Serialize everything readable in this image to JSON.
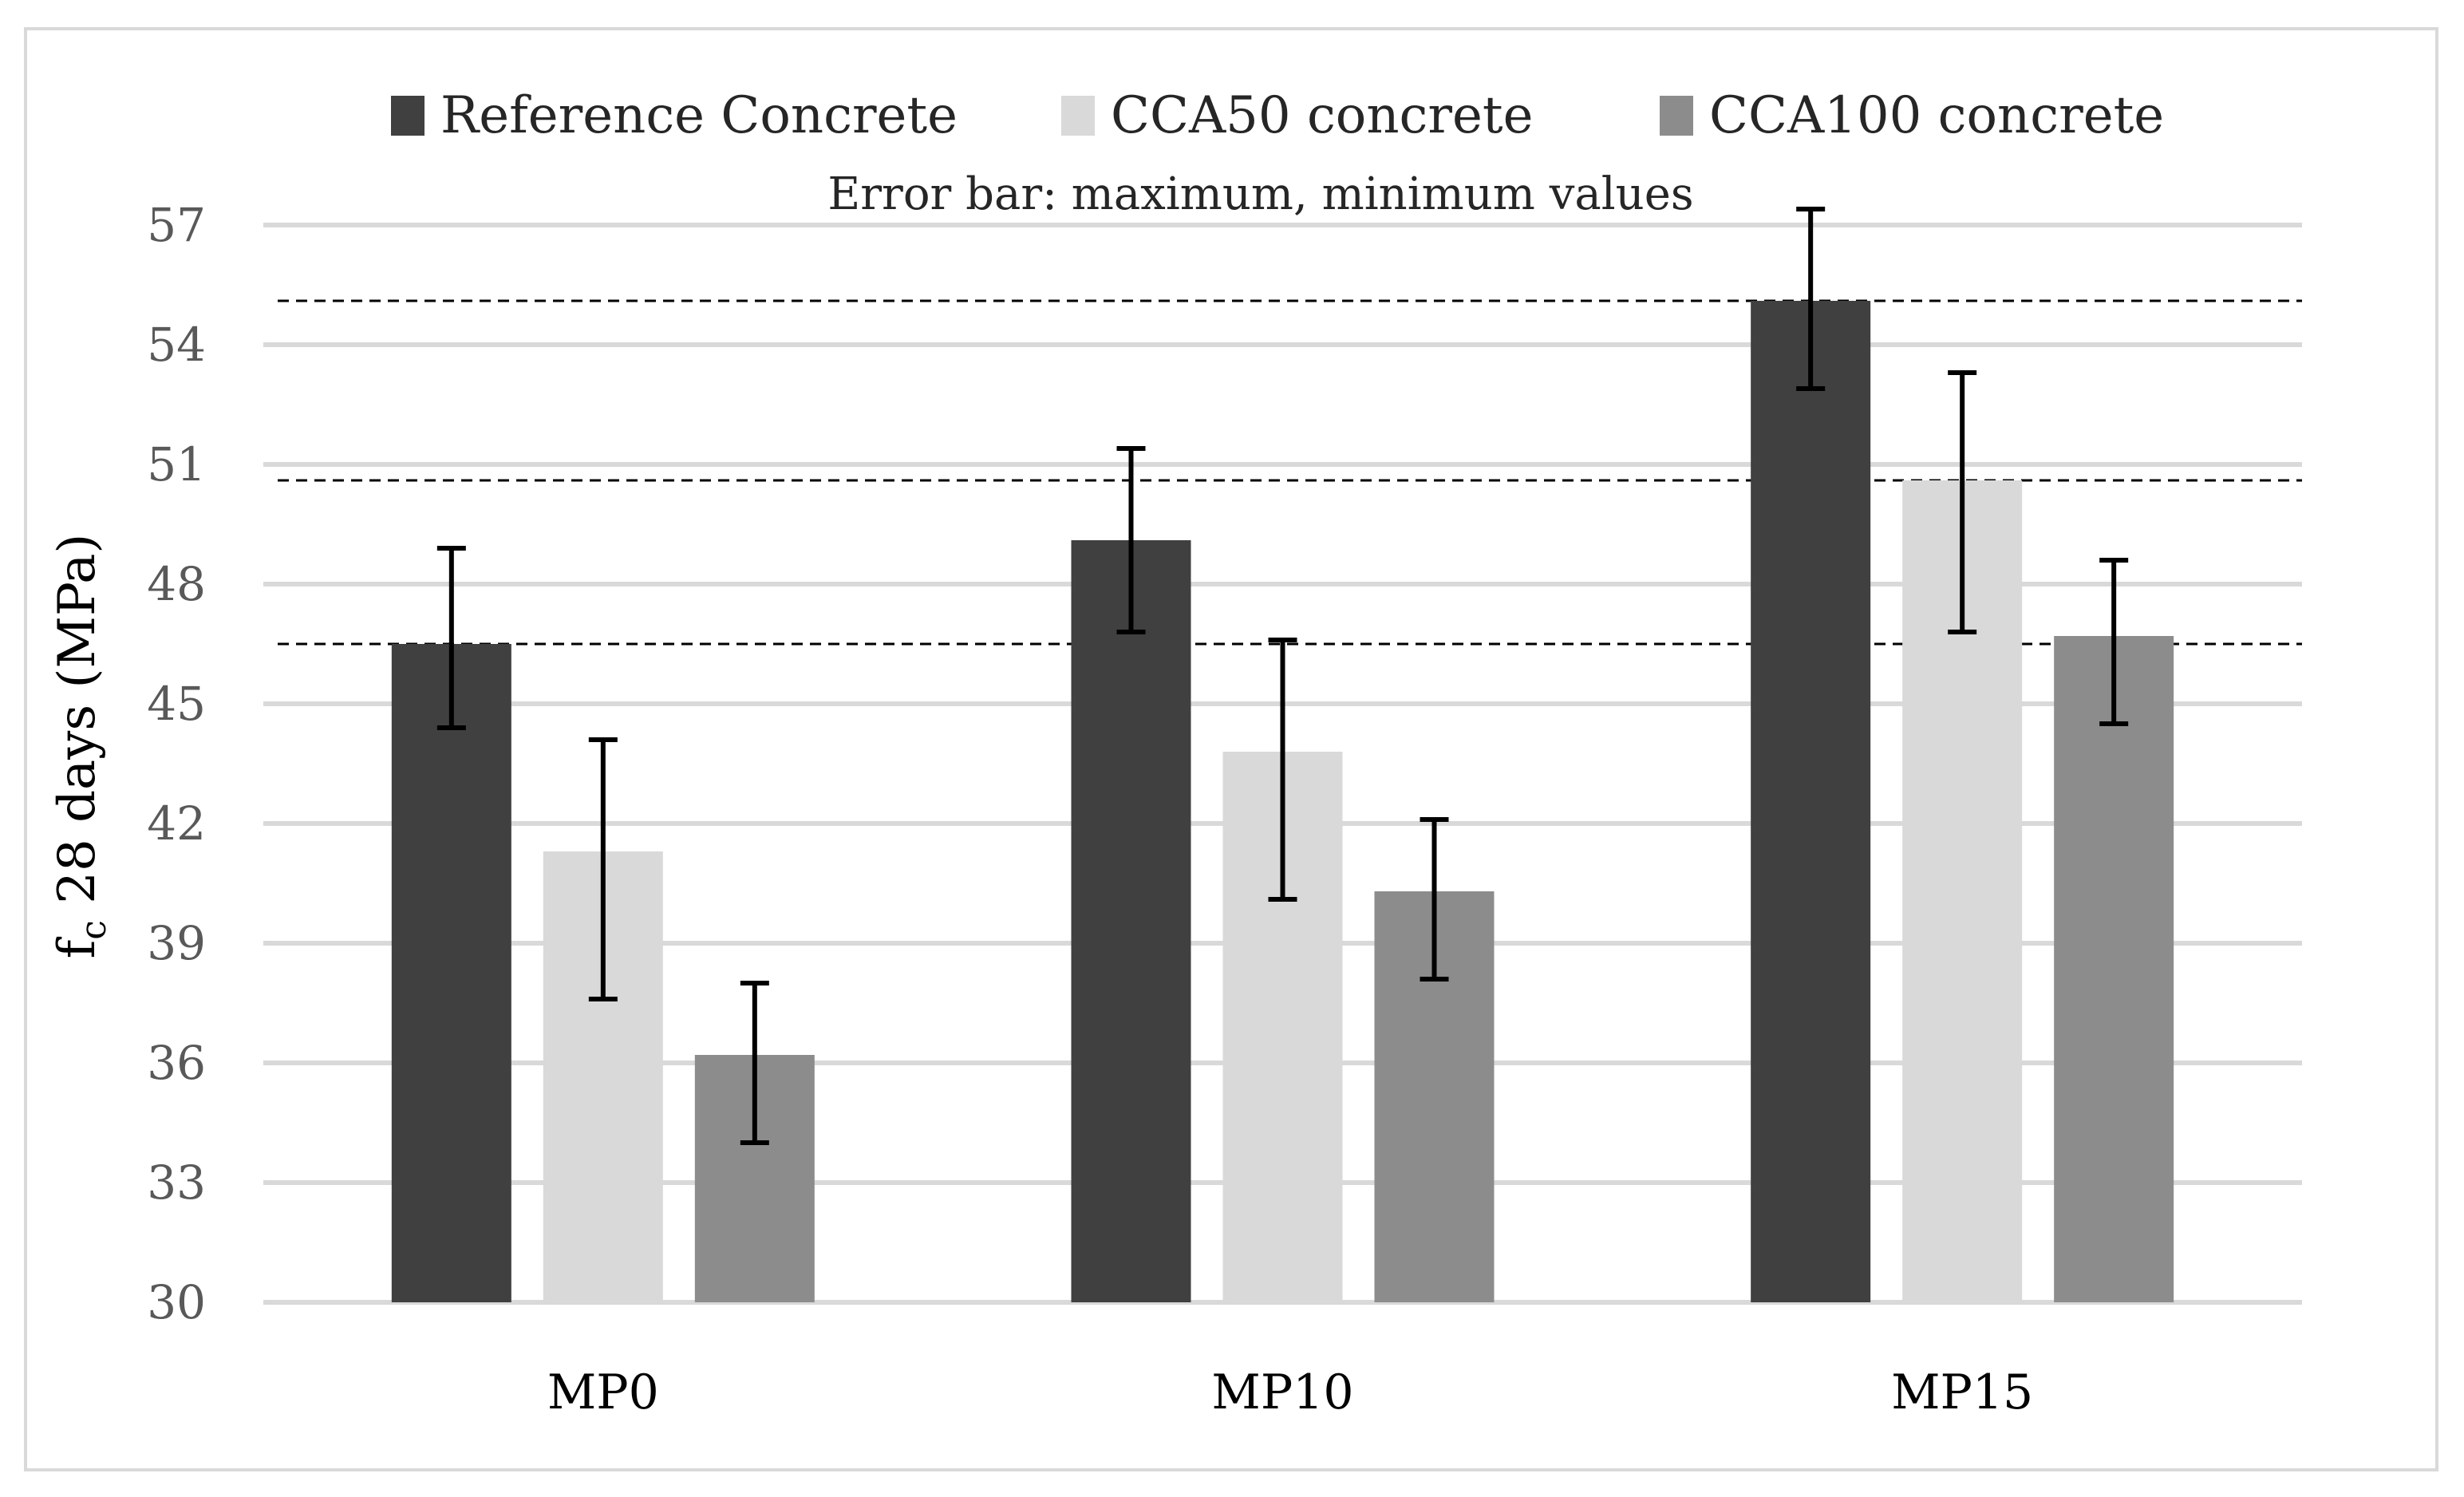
{
  "chart_data": {
    "type": "bar",
    "title": "",
    "xlabel": "",
    "ylabel": {
      "prefix": "f",
      "subscript": "c",
      "suffix": " 28 days (MPa)"
    },
    "note": "Error bar: maximum, minimum values",
    "categories": [
      "MP0",
      "MP10",
      "MP15"
    ],
    "ylim": [
      30,
      57
    ],
    "yticks": [
      30,
      33,
      36,
      39,
      42,
      45,
      48,
      51,
      54,
      57
    ],
    "grid": true,
    "legend_position": "top",
    "series": [
      {
        "name": "Reference Concrete",
        "color": "#404040",
        "values": [
          46.5,
          49.1,
          55.1
        ],
        "max": [
          48.9,
          51.4,
          57.4
        ],
        "min": [
          44.4,
          46.8,
          52.9
        ]
      },
      {
        "name": "CCA50 concrete",
        "color": "#d9d9d9",
        "values": [
          41.3,
          43.8,
          50.6
        ],
        "max": [
          44.1,
          46.6,
          53.3
        ],
        "min": [
          37.6,
          40.1,
          46.8
        ]
      },
      {
        "name": "CCA100 concrete",
        "color": "#8c8c8c",
        "values": [
          36.2,
          40.3,
          46.7
        ],
        "max": [
          38.0,
          42.1,
          48.6
        ],
        "min": [
          34.0,
          38.1,
          44.5
        ]
      }
    ],
    "reference_lines": [
      46.5,
      50.6,
      55.1
    ]
  }
}
